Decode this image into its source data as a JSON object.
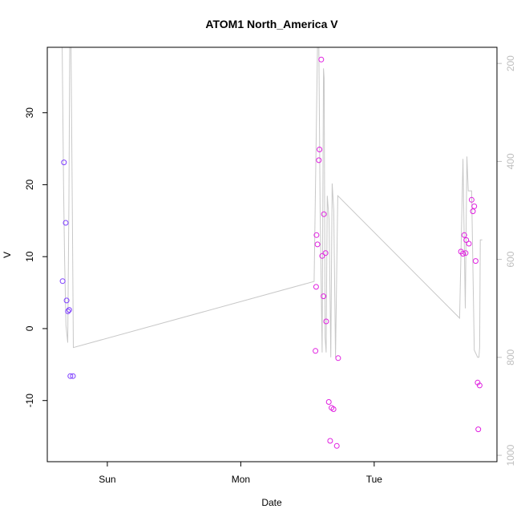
{
  "chart_data": {
    "type": "scatter",
    "title": "ATOM1 North_America V",
    "xlabel": "Date",
    "ylabel": "V",
    "x_ticks": [
      {
        "label": "Sun",
        "value": 1.0
      },
      {
        "label": "Mon",
        "value": 2.0
      },
      {
        "label": "Tue",
        "value": 3.0
      }
    ],
    "xlim": [
      0.55,
      3.92
    ],
    "ylim": [
      -18.5,
      39.1
    ],
    "y_ticks": [
      -10,
      0,
      10,
      20,
      30
    ],
    "y2_ticks": [
      200,
      400,
      600,
      800,
      1000
    ],
    "y2lim": [
      1013,
      167
    ],
    "grid": false,
    "legend": "none",
    "colors": {
      "axis": "#000000",
      "secondary_axis": "#bebebe",
      "line": "#c8c8c8",
      "points_early": "#7f3fff",
      "points_late": "#e020e0"
    },
    "series": [
      {
        "role": "points",
        "points": [
          {
            "x": 0.665,
            "y": 6.6,
            "c": "#7f3fff"
          },
          {
            "x": 0.675,
            "y": 23.1,
            "c": "#7f3fff"
          },
          {
            "x": 0.688,
            "y": 14.7,
            "c": "#7f3fff"
          },
          {
            "x": 0.695,
            "y": 3.9,
            "c": "#7f3fff"
          },
          {
            "x": 0.705,
            "y": 2.4,
            "c": "#7f3fff"
          },
          {
            "x": 0.714,
            "y": 2.6,
            "c": "#7f3fff"
          },
          {
            "x": 0.723,
            "y": -6.6,
            "c": "#7f3fff"
          },
          {
            "x": 0.742,
            "y": -6.6,
            "c": "#7f3fff"
          },
          {
            "x": 2.56,
            "y": -3.1,
            "c": "#e020e0"
          },
          {
            "x": 2.565,
            "y": 5.8,
            "c": "#e020e0"
          },
          {
            "x": 2.568,
            "y": 13.0,
            "c": "#e020e0"
          },
          {
            "x": 2.575,
            "y": 11.7,
            "c": "#e020e0"
          },
          {
            "x": 2.585,
            "y": 23.4,
            "c": "#e020e0"
          },
          {
            "x": 2.59,
            "y": 24.9,
            "c": "#e020e0"
          },
          {
            "x": 2.603,
            "y": 37.4,
            "c": "#e020e0"
          },
          {
            "x": 2.61,
            "y": 10.1,
            "c": "#e020e0"
          },
          {
            "x": 2.62,
            "y": 4.5,
            "c": "#e020e0"
          },
          {
            "x": 2.623,
            "y": 15.9,
            "c": "#e020e0"
          },
          {
            "x": 2.635,
            "y": 10.5,
            "c": "#e020e0"
          },
          {
            "x": 2.64,
            "y": 1.0,
            "c": "#e020e0"
          },
          {
            "x": 2.66,
            "y": -10.2,
            "c": "#e020e0"
          },
          {
            "x": 2.67,
            "y": -15.6,
            "c": "#e020e0"
          },
          {
            "x": 2.68,
            "y": -11.0,
            "c": "#e020e0"
          },
          {
            "x": 2.695,
            "y": -11.2,
            "c": "#e020e0"
          },
          {
            "x": 2.72,
            "y": -16.3,
            "c": "#e020e0"
          },
          {
            "x": 2.73,
            "y": -4.1,
            "c": "#e020e0"
          },
          {
            "x": 3.65,
            "y": 10.7,
            "c": "#e020e0"
          },
          {
            "x": 3.665,
            "y": 10.4,
            "c": "#e020e0"
          },
          {
            "x": 3.675,
            "y": 13.0,
            "c": "#e020e0"
          },
          {
            "x": 3.685,
            "y": 10.5,
            "c": "#e020e0"
          },
          {
            "x": 3.69,
            "y": 12.3,
            "c": "#e020e0"
          },
          {
            "x": 3.71,
            "y": 11.8,
            "c": "#e020e0"
          },
          {
            "x": 3.73,
            "y": 17.9,
            "c": "#e020e0"
          },
          {
            "x": 3.74,
            "y": 16.3,
            "c": "#e020e0"
          },
          {
            "x": 3.75,
            "y": 17.0,
            "c": "#e020e0"
          },
          {
            "x": 3.76,
            "y": 9.4,
            "c": "#e020e0"
          },
          {
            "x": 3.775,
            "y": -7.5,
            "c": "#e020e0"
          },
          {
            "x": 3.78,
            "y": -14.0,
            "c": "#e020e0"
          },
          {
            "x": 3.79,
            "y": -7.9,
            "c": "#e020e0"
          }
        ]
      },
      {
        "role": "line",
        "axis": "right",
        "points": [
          [
            0.65,
            167
          ],
          [
            0.662,
            167
          ],
          [
            0.672,
            450
          ],
          [
            0.68,
            600
          ],
          [
            0.69,
            735
          ],
          [
            0.703,
            770
          ],
          [
            0.712,
            480
          ],
          [
            0.718,
            167
          ],
          [
            0.728,
            167
          ],
          [
            0.738,
            510
          ],
          [
            0.745,
            780
          ],
          [
            2.55,
            645
          ],
          [
            2.575,
            167
          ],
          [
            2.585,
            167
          ],
          [
            2.595,
            500
          ],
          [
            2.61,
            790
          ],
          [
            2.62,
            210
          ],
          [
            2.625,
            230
          ],
          [
            2.632,
            760
          ],
          [
            2.64,
            790
          ],
          [
            2.648,
            470
          ],
          [
            2.662,
            520
          ],
          [
            2.675,
            800
          ],
          [
            2.685,
            445
          ],
          [
            2.697,
            500
          ],
          [
            2.71,
            800
          ],
          [
            2.727,
            470
          ],
          [
            3.64,
            720
          ],
          [
            3.665,
            395
          ],
          [
            3.683,
            700
          ],
          [
            3.695,
            390
          ],
          [
            3.705,
            460
          ],
          [
            3.73,
            460
          ],
          [
            3.75,
            785
          ],
          [
            3.775,
            800
          ],
          [
            3.785,
            800
          ],
          [
            3.79,
            780
          ],
          [
            3.795,
            560
          ],
          [
            3.81,
            560
          ]
        ]
      }
    ]
  }
}
